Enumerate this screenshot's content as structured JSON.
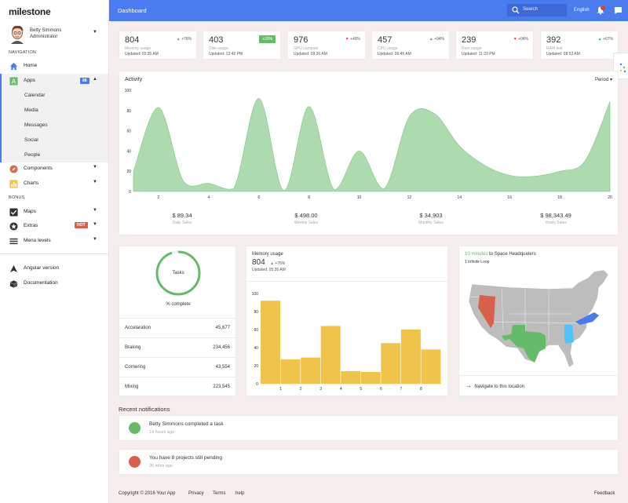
{
  "app": {
    "logo": "milestone"
  },
  "user": {
    "name": "Betty Simmons",
    "role": "Administrator"
  },
  "sidebar": {
    "nav_label": "NAVIGATION",
    "bonus_label": "BONUS",
    "home": "Home",
    "apps": "Apps",
    "apps_badge": "88",
    "apps_sub": [
      "Calendar",
      "Media",
      "Messages",
      "Social",
      "People"
    ],
    "components": "Components",
    "charts": "Charts",
    "maps": "Maps",
    "extras": "Extras",
    "extras_badge": "HOT",
    "menu_levels": "Menu levels",
    "angular": "Angular version",
    "docs": "Documentation"
  },
  "header": {
    "title": "Dashboard",
    "search_placeholder": "Search",
    "language": "English"
  },
  "stats": [
    {
      "value": "804",
      "delta": "+76%",
      "dir": "up",
      "name": "Memory usage",
      "updated": "Updated: 05:35 AM"
    },
    {
      "value": "403",
      "delta": "+20%",
      "dir": "pill",
      "name": "Disk usage",
      "updated": "Updated: 12:42 PM"
    },
    {
      "value": "976",
      "delta": "+40%",
      "dir": "down",
      "name": "GPU compute",
      "updated": "Updated: 09:26 AM"
    },
    {
      "value": "457",
      "delta": "+94%",
      "dir": "up",
      "name": "CPU usage",
      "updated": "Updated: 06:45 AM"
    },
    {
      "value": "239",
      "delta": "+04%",
      "dir": "down",
      "name": "Ram usage",
      "updated": "Updated: 11:23 PM"
    },
    {
      "value": "392",
      "delta": "+67%",
      "dir": "up",
      "name": "RAM test",
      "updated": "Updated: 08:52 AM"
    }
  ],
  "activity": {
    "title": "Activity",
    "period_label": "Period",
    "sales": [
      {
        "amount": "$ 89.34",
        "label": "Daily Sales"
      },
      {
        "amount": "$ 498.00",
        "label": "Weekly Sales"
      },
      {
        "amount": "$ 34,903",
        "label": "Monthly Sales"
      },
      {
        "amount": "$ 98,343.49",
        "label": "Yearly Sales"
      }
    ]
  },
  "tasks": {
    "title": "Tasks",
    "caption": "% complete",
    "progress": 0.95,
    "rows": [
      {
        "label": "Accelaration",
        "value": "45,677"
      },
      {
        "label": "Braking",
        "value": "234,456"
      },
      {
        "label": "Cornering",
        "value": "43,554"
      },
      {
        "label": "Mixing",
        "value": "223,545"
      }
    ]
  },
  "memory": {
    "title": "Memory usage",
    "value": "804",
    "delta": "+76%",
    "updated": "Updated: 05:35 AM"
  },
  "map": {
    "title_highlight": "10 minutes",
    "title_rest": " to Space Headquaters",
    "subtitle": "1 Infinite Loop",
    "navigate": "Navigate to this location",
    "colors": {
      "nevada": "#d9604a",
      "texas": "#66bb6a",
      "alabama": "#4fc3f7",
      "north_carolina": "#4a7cf0",
      "base": "#bdbdbd"
    }
  },
  "notifications": {
    "title": "Recent notifications",
    "items": [
      {
        "text": "Betty Simmons completed a task",
        "time": "14 hours ago",
        "color": "#66bb6a"
      },
      {
        "text": "You have 8 projects still pending",
        "time": "26 mins ago",
        "color": "#d9604a"
      }
    ]
  },
  "footer": {
    "copyright": "Copyright © 2016 Your App",
    "links": [
      "Privacy",
      "Terms",
      "help"
    ],
    "feedback": "Feedback"
  },
  "chart_data": [
    {
      "type": "area",
      "x": [
        1,
        2,
        3,
        4,
        5,
        6,
        7,
        8,
        9,
        10,
        11,
        12,
        13,
        14,
        15,
        16,
        17,
        18,
        19,
        20
      ],
      "series": [
        {
          "values": [
            20,
            83,
            10,
            8,
            3,
            92,
            1,
            84,
            2,
            40,
            3,
            74,
            77,
            45,
            26,
            16,
            15,
            20,
            30,
            89
          ]
        }
      ],
      "yticks": [
        0,
        20,
        40,
        60,
        80,
        100
      ],
      "xticks": [
        2,
        4,
        6,
        8,
        10,
        12,
        14,
        16,
        18,
        20
      ],
      "ylim": [
        0,
        100
      ],
      "xlim": [
        1,
        20
      ],
      "color": "#a5d6a7"
    },
    {
      "type": "bar",
      "categories": [
        "",
        "1",
        "2",
        "3",
        "4",
        "5",
        "6",
        "7",
        "8"
      ],
      "values": [
        92,
        27,
        29,
        64,
        14,
        13,
        45,
        60,
        38
      ],
      "yticks": [
        0,
        20,
        40,
        60,
        80,
        100
      ],
      "ylim": [
        0,
        100
      ],
      "color": "#f0c44a"
    }
  ]
}
